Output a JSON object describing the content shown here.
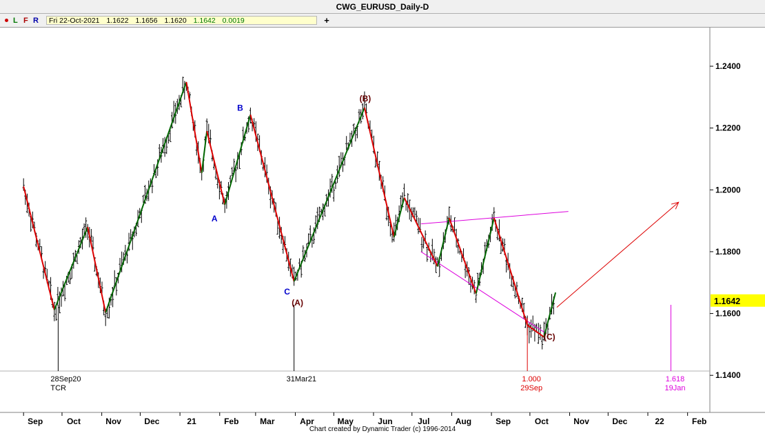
{
  "window": {
    "title": "CWG_EURUSD_Daily-D"
  },
  "toolbar": {
    "buttons": [
      "L",
      "F",
      "R"
    ],
    "quote": {
      "date": "Fri 22-Oct-2021",
      "open": "1.1622",
      "high": "1.1656",
      "low": "1.1620",
      "close": "1.1642",
      "change": "0.0019"
    },
    "add_label": "+"
  },
  "footer": {
    "credit": "Chart created by Dynamic Trader  (c) 1996-2014"
  },
  "colors": {
    "up": "#006600",
    "down": "#dd0000",
    "bar": "#000000",
    "magenta": "#dd00dd",
    "brown": "#660000",
    "blue": "#0000cc",
    "last_price_bg": "#ffff00"
  },
  "chart_data": {
    "type": "line",
    "title": "CWG_EURUSD_Daily-D",
    "ylim": [
      1.128,
      1.2525
    ],
    "y_ticks": [
      "1.2400",
      "1.2200",
      "1.2000",
      "1.1800",
      "1.1600",
      "1.1400"
    ],
    "x_ticks": [
      "Sep",
      "Oct",
      "Nov",
      "Dec",
      "21",
      "Feb",
      "Mar",
      "Apr",
      "May",
      "Jun",
      "Jul",
      "Aug",
      "Sep",
      "Oct",
      "Nov",
      "Dec",
      "22",
      "Feb"
    ],
    "last_price": "1.1642",
    "price_bars": "daily OHLC bars (EURUSD), Sep 2020 – Oct 22 2021",
    "swing_series": {
      "name": "",
      "points": [
        [
          "2020-09-01",
          1.2011
        ],
        [
          "2020-09-25",
          1.1612
        ],
        [
          "2020-10-21",
          1.188
        ],
        [
          "2020-11-04",
          1.1603
        ],
        [
          "2021-01-06",
          1.2349
        ],
        [
          "2021-01-18",
          1.2055
        ],
        [
          "2021-01-22",
          1.219
        ],
        [
          "2021-02-05",
          1.1952
        ],
        [
          "2021-02-25",
          1.2243
        ],
        [
          "2021-03-31",
          1.1704
        ],
        [
          "2021-05-25",
          1.2266
        ],
        [
          "2021-06-17",
          1.1847
        ],
        [
          "2021-06-25",
          1.1975
        ],
        [
          "2021-07-21",
          1.1752
        ],
        [
          "2021-07-30",
          1.1909
        ],
        [
          "2021-08-20",
          1.1664
        ],
        [
          "2021-09-03",
          1.1909
        ],
        [
          "2021-09-29",
          1.1562
        ],
        [
          "2021-10-12",
          1.1524
        ],
        [
          "2021-10-21",
          1.1668
        ]
      ]
    },
    "wave_labels": [
      {
        "label": "A",
        "x": "2021-02-05",
        "y": 1.1952
      },
      {
        "label": "B",
        "x": "2021-02-25",
        "y": 1.2243
      },
      {
        "label": "C",
        "x": "2021-03-31",
        "y": 1.1704
      },
      {
        "label": "(A)",
        "x": "2021-03-31",
        "y": 1.1704
      },
      {
        "label": "(B)",
        "x": "2021-05-25",
        "y": 1.2266
      },
      {
        "label": "(C)",
        "x": "2021-10-12",
        "y": 1.1524
      }
    ],
    "trend_lines": [
      {
        "name": "upper channel line",
        "from": [
          "2021-07-08",
          1.189
        ],
        "to": [
          "2021-10-31",
          1.193
        ]
      },
      {
        "name": "lower channel line",
        "from": [
          "2021-07-08",
          1.18
        ],
        "to": [
          "2021-10-12",
          1.154
        ]
      }
    ],
    "projection_arrow": {
      "from": [
        "2021-10-22",
        1.162
      ],
      "to": [
        "2022-01-25",
        1.196
      ]
    },
    "time_markers": [
      {
        "date": "2020-09-28",
        "lines": [
          "28Sep20",
          "TCR"
        ]
      },
      {
        "date": "2021-03-31",
        "lines": [
          "31Mar21"
        ]
      },
      {
        "date": "2021-09-29",
        "lines": [
          "1.000",
          "29Sep"
        ]
      },
      {
        "date": "2022-01-19",
        "lines": [
          "1.618",
          "19Jan"
        ]
      }
    ]
  }
}
